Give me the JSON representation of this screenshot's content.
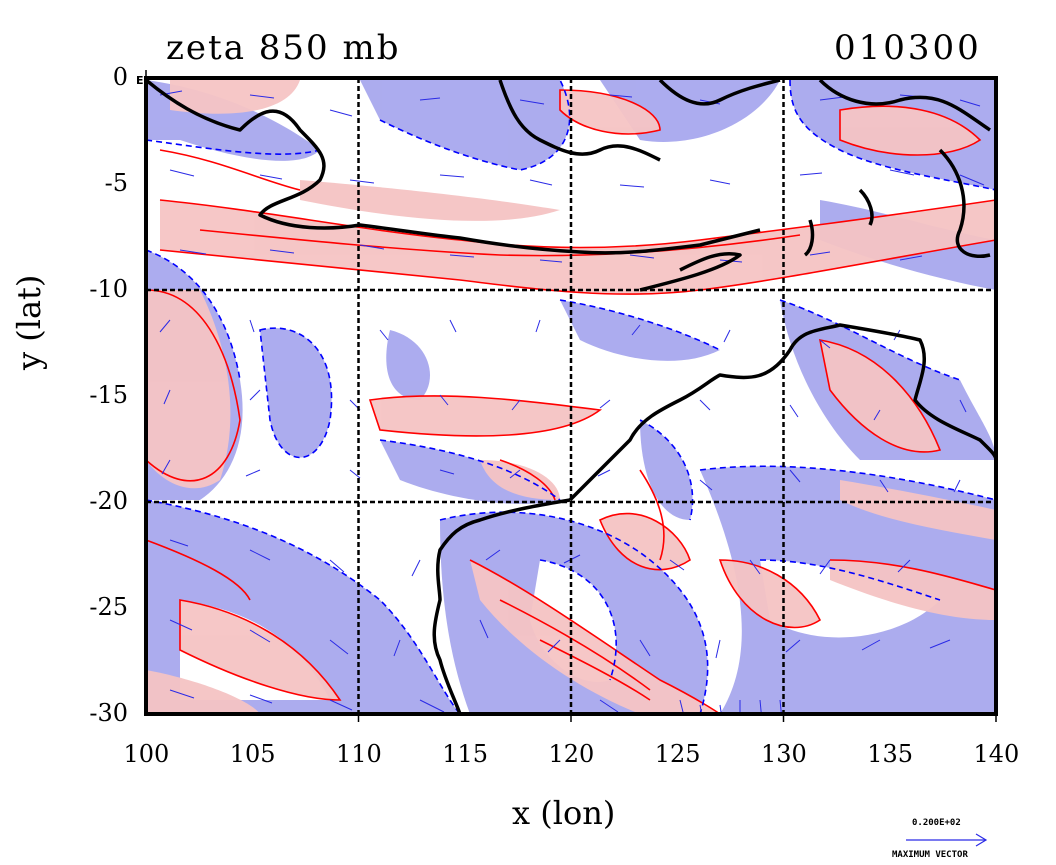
{
  "title": "zeta 850 mb",
  "date_code": "010300",
  "corner_label": "E",
  "max_vector_value": "0.200E+02",
  "max_vector_label": "MAXIMUM VECTOR",
  "x_axis": {
    "label": "x (lon)",
    "ticks": [
      "100",
      "105",
      "110",
      "115",
      "120",
      "125",
      "130",
      "135",
      "140"
    ],
    "range": [
      100,
      140
    ]
  },
  "y_axis": {
    "label": "y (lat)",
    "ticks": [
      "0",
      "-5",
      "-10",
      "-15",
      "-20",
      "-25",
      "-30"
    ],
    "range": [
      -30,
      0
    ]
  },
  "colors": {
    "positive_fill": "#f5c4c4",
    "positive_contour": "#ff0000",
    "negative_fill": "#a8a8ee",
    "negative_contour": "#0000ff",
    "coastline": "#000000",
    "vector": "#2a2ae6"
  },
  "legend_symbols": [
    "positive-vorticity-shading",
    "negative-vorticity-shading",
    "wind-vectors"
  ]
}
